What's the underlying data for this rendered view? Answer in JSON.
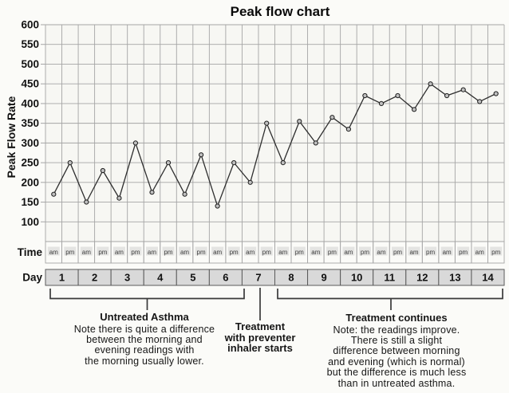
{
  "chart_data": {
    "type": "line",
    "title": "Peak flow chart",
    "ylabel": "Peak Flow Rate",
    "ylim": [
      50,
      600
    ],
    "yticks": [
      600,
      550,
      500,
      450,
      400,
      350,
      300,
      250,
      200,
      150,
      100
    ],
    "grid": true,
    "legend": "none",
    "x_axis": {
      "time_row_label": "Time",
      "day_row_label": "Day",
      "time_labels": [
        "am",
        "pm"
      ]
    },
    "readings": [
      {
        "day": 1,
        "am": 170,
        "pm": 250
      },
      {
        "day": 2,
        "am": 150,
        "pm": 230
      },
      {
        "day": 3,
        "am": 160,
        "pm": 300
      },
      {
        "day": 4,
        "am": 175,
        "pm": 250
      },
      {
        "day": 5,
        "am": 170,
        "pm": 270
      },
      {
        "day": 6,
        "am": 140,
        "pm": 250
      },
      {
        "day": 7,
        "am": 200,
        "pm": 350
      },
      {
        "day": 8,
        "am": 250,
        "pm": 355
      },
      {
        "day": 9,
        "am": 300,
        "pm": 365
      },
      {
        "day": 10,
        "am": 335,
        "pm": 420
      },
      {
        "day": 11,
        "am": 400,
        "pm": 420
      },
      {
        "day": 12,
        "am": 385,
        "pm": 450
      },
      {
        "day": 13,
        "am": 420,
        "pm": 435
      },
      {
        "day": 14,
        "am": 405,
        "pm": 425
      }
    ]
  },
  "annotations": {
    "untreated": {
      "days": "1-6",
      "title": "Untreated Asthma",
      "body": "Note there is quite a difference\nbetween the morning and\nevening readings with\nthe morning usually lower."
    },
    "treatment_start": {
      "days": "7",
      "title": "Treatment\nwith preventer\ninhaler starts"
    },
    "treatment_continues": {
      "days": "8-14",
      "title": "Treatment continues",
      "body": "Note: the readings improve.\nThere is still a slight\ndifference between morning\nand evening (which is normal)\nbut the difference is much less\nthan in untreated asthma."
    }
  },
  "colors": {
    "page_bg": "#fbfbf8",
    "plot_bg": "#f7f7f3",
    "grid": "#a5a5a5",
    "axis_text": "#111111",
    "line": "#2e2e2e",
    "marker_fill": "#c0c0c0",
    "marker_stroke": "#1e1e1e",
    "day_band_fill": "#d9d9d9",
    "day_band_border": "#5a5a5a",
    "ampm_text": "#3c3c3c",
    "ampm_bg": "#e4e4e2",
    "brace": "#3a3a3a"
  }
}
